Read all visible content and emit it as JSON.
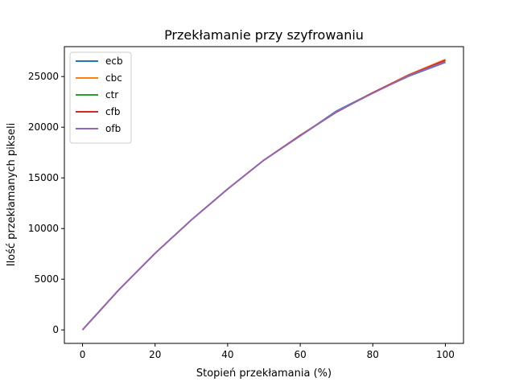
{
  "chart_data": {
    "type": "line",
    "title": "Przekłamanie przy szyfrowaniu",
    "xlabel": "Stopień przekłamania (%)",
    "ylabel": "Ilość przekłamanych pikseli",
    "xlim": [
      -5,
      105
    ],
    "ylim": [
      -1330,
      27950
    ],
    "xticks": [
      0,
      20,
      40,
      60,
      80,
      100
    ],
    "yticks": [
      0,
      5000,
      10000,
      15000,
      20000,
      25000
    ],
    "grid": false,
    "legend_position": "top-left",
    "x": [
      0,
      10,
      20,
      30,
      40,
      50,
      60,
      70,
      80,
      90,
      100
    ],
    "series": [
      {
        "name": "ecb",
        "color": "#1f77b4",
        "values": [
          0,
          3950,
          7560,
          10850,
          13900,
          16750,
          19150,
          21600,
          23400,
          25050,
          26400
        ]
      },
      {
        "name": "cbc",
        "color": "#ff7f0e",
        "values": [
          0,
          3950,
          7560,
          10850,
          13900,
          16750,
          19200,
          21500,
          23400,
          25200,
          26700
        ]
      },
      {
        "name": "ctr",
        "color": "#2ca02c",
        "values": [
          0,
          3950,
          7560,
          10850,
          13900,
          16750,
          19150,
          21500,
          23400,
          25100,
          26500
        ]
      },
      {
        "name": "cfb",
        "color": "#d62728",
        "values": [
          0,
          3950,
          7560,
          10850,
          13900,
          16750,
          19200,
          21500,
          23400,
          25150,
          26600
        ]
      },
      {
        "name": "ofb",
        "color": "#9467bd",
        "values": [
          0,
          3950,
          7560,
          10850,
          13900,
          16750,
          19150,
          21550,
          23350,
          25100,
          26450
        ]
      }
    ]
  }
}
